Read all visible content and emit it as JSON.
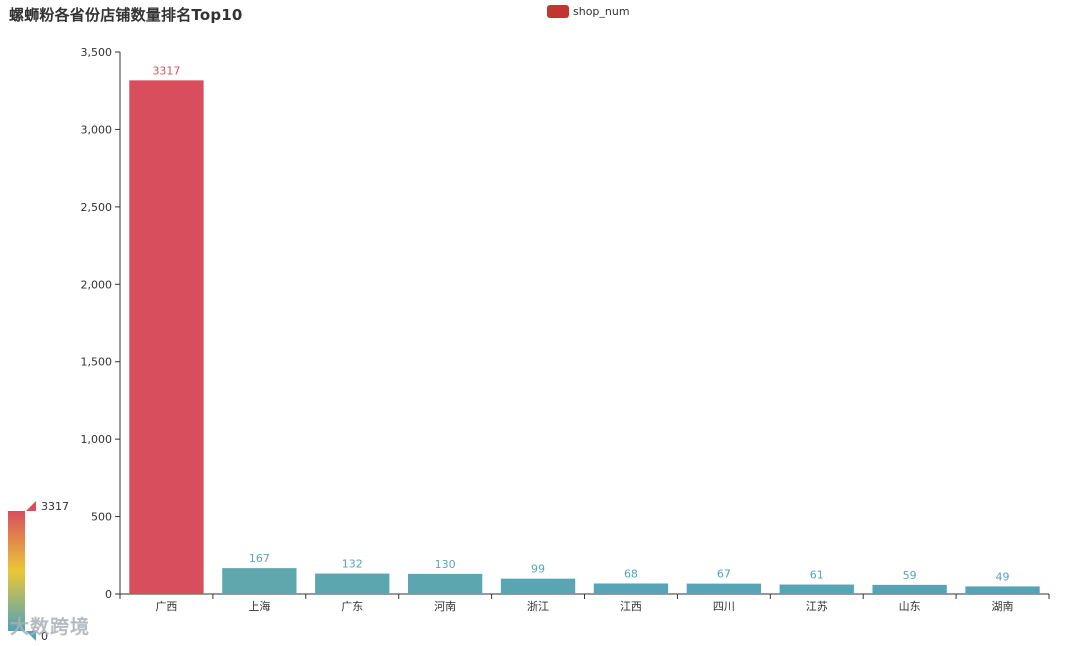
{
  "title": "螺蛳粉各省份店铺数量排名Top10",
  "legend": {
    "label": "shop_num",
    "color": "#c23531"
  },
  "visual_map": {
    "max_label": "3317",
    "min_label": "0",
    "colors": [
      "#d94e5d",
      "#eac736",
      "#50a3ba"
    ]
  },
  "watermark": "大数跨境",
  "chart_data": {
    "type": "bar",
    "title": "螺蛳粉各省份店铺数量排名Top10",
    "categories": [
      "广西",
      "上海",
      "广东",
      "河南",
      "浙江",
      "江西",
      "四川",
      "江苏",
      "山东",
      "湖南"
    ],
    "series": [
      {
        "name": "shop_num",
        "values": [
          3317,
          167,
          132,
          130,
          99,
          68,
          67,
          61,
          59,
          49
        ]
      }
    ],
    "ylim": [
      0,
      3500
    ],
    "yticks": [
      "0",
      "500",
      "1,000",
      "1,500",
      "2,000",
      "2,500",
      "3,000",
      "3,500"
    ],
    "grid": false,
    "legend_position": "top-center"
  }
}
